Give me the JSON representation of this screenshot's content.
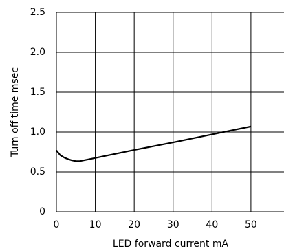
{
  "chart_data": {
    "type": "line",
    "xlabel": "LED forward current mA",
    "ylabel": "Turn off time msec",
    "x": [
      0,
      1,
      2,
      3,
      4,
      5,
      6,
      10,
      20,
      30,
      40,
      50
    ],
    "series": [
      {
        "color": "#000000",
        "values": [
          0.77,
          0.71,
          0.68,
          0.66,
          0.645,
          0.635,
          0.635,
          0.675,
          0.775,
          0.87,
          0.97,
          1.07
        ]
      }
    ],
    "xlim": [
      0,
      58.5
    ],
    "xticks": [
      0,
      10,
      20,
      30,
      40,
      50
    ],
    "ylim": [
      0,
      2.5
    ],
    "yticks": [
      0,
      0.5,
      {
        "value": 1,
        "label": "1.0"
      },
      1.5,
      {
        "value": 2,
        "label": "2.0"
      },
      2.5
    ],
    "grid": true
  }
}
